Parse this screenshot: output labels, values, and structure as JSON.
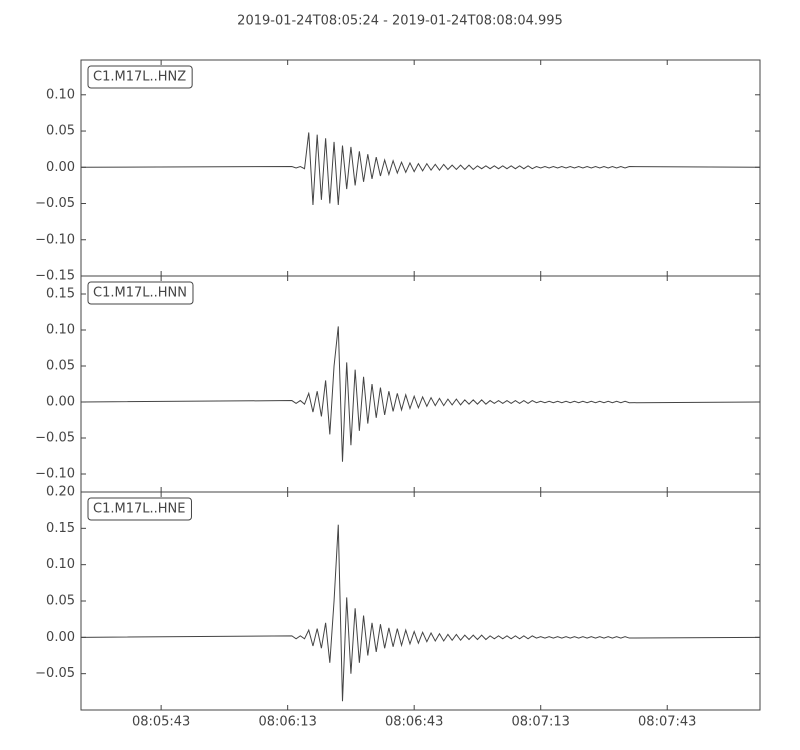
{
  "title": "2019-01-24T08:05:24  -  2019-01-24T08:08:04.995",
  "chart_data": [
    {
      "type": "line",
      "xlim": [
        0,
        160.995
      ],
      "ylim": [
        -0.15,
        0.148
      ],
      "yticks": [
        {
          "value": -0.15,
          "label": "−0.15"
        },
        {
          "value": -0.1,
          "label": "−0.10"
        },
        {
          "value": -0.05,
          "label": "−0.05"
        },
        {
          "value": 0,
          "label": "0.00"
        },
        {
          "value": 0.05,
          "label": "0.05"
        },
        {
          "value": 0.1,
          "label": "0.10"
        }
      ],
      "series": [
        {
          "name": "C1.M17L..HNZ",
          "color": "#444444",
          "x": [
            0,
            50,
            51,
            52,
            53,
            54,
            55,
            56,
            57,
            58,
            59,
            60,
            61,
            62,
            63,
            64,
            65,
            66,
            67,
            68,
            69,
            70,
            71,
            72,
            73,
            74,
            75,
            76,
            77,
            78,
            79,
            80,
            81,
            82,
            83,
            84,
            85,
            86,
            87,
            88,
            89,
            90,
            91,
            92,
            93,
            94,
            95,
            96,
            97,
            98,
            99,
            100,
            101,
            102,
            103,
            104,
            105,
            106,
            107,
            108,
            109,
            110,
            111,
            112,
            113,
            114,
            115,
            116,
            117,
            118,
            119,
            120,
            121,
            122,
            123,
            124,
            125,
            126,
            127,
            128,
            129,
            130,
            161
          ],
          "values": [
            0,
            0.001,
            -0.001,
            0.001,
            -0.002,
            0.048,
            -0.052,
            0.045,
            -0.045,
            0.04,
            -0.05,
            0.035,
            -0.052,
            0.03,
            -0.03,
            0.028,
            -0.025,
            0.022,
            -0.02,
            0.018,
            -0.016,
            0.014,
            -0.012,
            0.01,
            -0.01,
            0.009,
            -0.008,
            0.007,
            -0.007,
            0.006,
            -0.006,
            0.005,
            -0.005,
            0.005,
            -0.004,
            0.004,
            -0.004,
            0.004,
            -0.003,
            0.003,
            -0.003,
            0.003,
            -0.003,
            0.003,
            -0.003,
            0.002,
            -0.002,
            0.002,
            -0.002,
            0.002,
            -0.002,
            0.002,
            -0.002,
            0.002,
            -0.002,
            0.002,
            -0.002,
            0.002,
            -0.002,
            0.001,
            -0.001,
            0.001,
            -0.001,
            0.001,
            -0.001,
            0.001,
            -0.001,
            0.001,
            -0.001,
            0.001,
            -0.001,
            0.001,
            -0.001,
            0.001,
            -0.001,
            0.001,
            -0.001,
            0.001,
            -0.001,
            0.001,
            -0.001,
            0.001,
            0
          ]
        }
      ]
    },
    {
      "type": "line",
      "xlim": [
        0,
        160.995
      ],
      "ylim": [
        -0.125,
        0.175
      ],
      "yticks": [
        {
          "value": -0.1,
          "label": "−0.10"
        },
        {
          "value": -0.05,
          "label": "−0.05"
        },
        {
          "value": 0,
          "label": "0.00"
        },
        {
          "value": 0.05,
          "label": "0.05"
        },
        {
          "value": 0.1,
          "label": "0.10"
        },
        {
          "value": 0.15,
          "label": "0.15"
        }
      ],
      "series": [
        {
          "name": "C1.M17L..HNN",
          "color": "#444444",
          "x": [
            0,
            50,
            51,
            52,
            53,
            54,
            55,
            56,
            57,
            58,
            59,
            60,
            61,
            62,
            63,
            64,
            65,
            66,
            67,
            68,
            69,
            70,
            71,
            72,
            73,
            74,
            75,
            76,
            77,
            78,
            79,
            80,
            81,
            82,
            83,
            84,
            85,
            86,
            87,
            88,
            89,
            90,
            91,
            92,
            93,
            94,
            95,
            96,
            97,
            98,
            99,
            100,
            101,
            102,
            103,
            104,
            105,
            106,
            107,
            108,
            109,
            110,
            111,
            112,
            113,
            114,
            115,
            116,
            117,
            118,
            119,
            120,
            121,
            122,
            123,
            124,
            125,
            126,
            127,
            128,
            129,
            130,
            161
          ],
          "values": [
            0,
            0.002,
            -0.002,
            0.002,
            -0.003,
            0.012,
            -0.014,
            0.015,
            -0.02,
            0.03,
            -0.045,
            0.05,
            0.105,
            -0.083,
            0.055,
            -0.06,
            0.045,
            -0.04,
            0.035,
            -0.03,
            0.025,
            -0.022,
            0.02,
            -0.018,
            0.015,
            -0.013,
            0.012,
            -0.011,
            0.01,
            -0.009,
            0.008,
            -0.008,
            0.007,
            -0.006,
            0.006,
            -0.005,
            0.005,
            -0.005,
            0.004,
            -0.004,
            0.004,
            -0.004,
            0.003,
            -0.003,
            0.003,
            -0.003,
            0.003,
            -0.003,
            0.002,
            -0.002,
            0.002,
            -0.002,
            0.002,
            -0.002,
            0.002,
            -0.002,
            0.002,
            -0.002,
            0.002,
            -0.001,
            0.001,
            -0.001,
            0.001,
            -0.001,
            0.001,
            -0.001,
            0.001,
            -0.001,
            0.001,
            -0.001,
            0.001,
            -0.001,
            0.001,
            -0.001,
            0.001,
            -0.001,
            0.001,
            -0.001,
            0.001,
            -0.001,
            0.001,
            -0.001,
            0
          ]
        }
      ]
    },
    {
      "type": "line",
      "xlim": [
        0,
        160.995
      ],
      "ylim": [
        -0.1,
        0.2
      ],
      "xticks": [
        {
          "value": 19,
          "label": "08:05:43"
        },
        {
          "value": 49,
          "label": "08:06:13"
        },
        {
          "value": 79,
          "label": "08:06:43"
        },
        {
          "value": 109,
          "label": "08:07:13"
        },
        {
          "value": 139,
          "label": "08:07:43"
        }
      ],
      "yticks": [
        {
          "value": -0.05,
          "label": "−0.05"
        },
        {
          "value": 0,
          "label": "0.00"
        },
        {
          "value": 0.05,
          "label": "0.05"
        },
        {
          "value": 0.1,
          "label": "0.10"
        },
        {
          "value": 0.15,
          "label": "0.15"
        },
        {
          "value": 0.2,
          "label": "0.20"
        }
      ],
      "series": [
        {
          "name": "C1.M17L..HNE",
          "color": "#444444",
          "x": [
            0,
            50,
            51,
            52,
            53,
            54,
            55,
            56,
            57,
            58,
            59,
            60,
            61,
            62,
            63,
            64,
            65,
            66,
            67,
            68,
            69,
            70,
            71,
            72,
            73,
            74,
            75,
            76,
            77,
            78,
            79,
            80,
            81,
            82,
            83,
            84,
            85,
            86,
            87,
            88,
            89,
            90,
            91,
            92,
            93,
            94,
            95,
            96,
            97,
            98,
            99,
            100,
            101,
            102,
            103,
            104,
            105,
            106,
            107,
            108,
            109,
            110,
            111,
            112,
            113,
            114,
            115,
            116,
            117,
            118,
            119,
            120,
            121,
            122,
            123,
            124,
            125,
            126,
            127,
            128,
            129,
            130,
            161
          ],
          "values": [
            0,
            0.002,
            -0.002,
            0.002,
            -0.002,
            0.01,
            -0.012,
            0.012,
            -0.015,
            0.02,
            -0.035,
            0.05,
            0.155,
            -0.088,
            0.055,
            -0.05,
            0.04,
            -0.035,
            0.03,
            -0.025,
            0.02,
            -0.02,
            0.018,
            -0.015,
            0.013,
            -0.013,
            0.012,
            -0.011,
            0.01,
            -0.009,
            0.008,
            -0.008,
            0.007,
            -0.006,
            0.006,
            -0.005,
            0.005,
            -0.005,
            0.004,
            -0.004,
            0.004,
            -0.004,
            0.003,
            -0.003,
            0.003,
            -0.003,
            0.003,
            -0.003,
            0.002,
            -0.002,
            0.002,
            -0.002,
            0.002,
            -0.002,
            0.002,
            -0.002,
            0.002,
            -0.002,
            0.002,
            -0.001,
            0.001,
            -0.001,
            0.001,
            -0.001,
            0.001,
            -0.001,
            0.001,
            -0.001,
            0.001,
            -0.001,
            0.001,
            -0.001,
            0.001,
            -0.001,
            0.001,
            -0.001,
            0.001,
            -0.001,
            0.001,
            -0.001,
            0.001,
            -0.001,
            0
          ]
        }
      ]
    }
  ]
}
